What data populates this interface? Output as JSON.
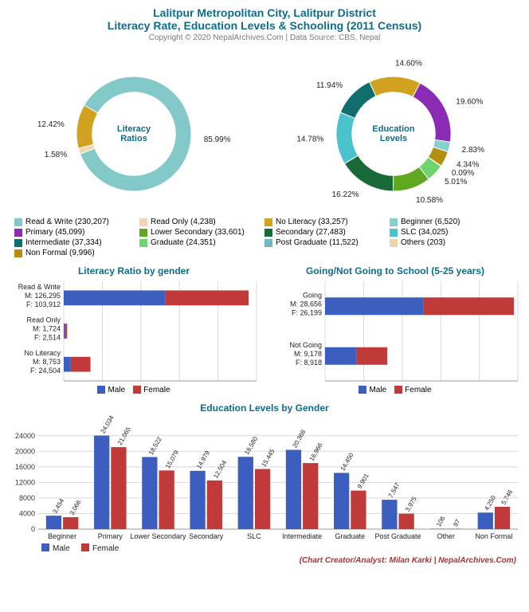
{
  "title": {
    "line1": "Lalitpur Metropolitan City, Lalitpur District",
    "line2": "Literacy Rate, Education Levels & Schooling (2011 Census)",
    "color": "#0f6b8a",
    "fontsize": 14
  },
  "copyright": "Copyright © 2020 NepalArchives.Com | Data Source: CBS, Nepal",
  "credit": "(Chart Creator/Analyst: Milan Karki | NepalArchives.Com)",
  "colors": {
    "male": "#3c5fbf",
    "female": "#c13a3a",
    "grid": "#d8d8d8",
    "axis": "#9a9a9a",
    "text": "#333333",
    "section_title": "#0f6b8a"
  },
  "donut1": {
    "title": "Literacy\nRatios",
    "title_color": "#0f6b8a",
    "title_fontsize": 11,
    "center_hole": 0.5,
    "slices": [
      {
        "label": "85.99%",
        "value": 85.99,
        "color": "#84c9c9"
      },
      {
        "label": "1.58%",
        "value": 1.58,
        "color": "#f1d4b1"
      },
      {
        "label": "12.42%",
        "value": 12.42,
        "color": "#d1a21f"
      }
    ],
    "label_fontsize": 10
  },
  "donut2": {
    "title": "Education\nLevels",
    "title_color": "#0f6b8a",
    "title_fontsize": 11,
    "center_hole": 0.5,
    "slices": [
      {
        "label": "14.60%",
        "value": 14.6,
        "color": "#d1a21f"
      },
      {
        "label": "19.60%",
        "value": 19.6,
        "color": "#8b2ab3"
      },
      {
        "label": "2.83%",
        "value": 2.83,
        "color": "#86d0ce"
      },
      {
        "label": "4.34%",
        "value": 4.34,
        "color": "#b38e0f"
      },
      {
        "label": "0.09%",
        "value": 0.09,
        "color": "#e8d5a8"
      },
      {
        "label": "5.01%",
        "value": 5.01,
        "color": "#6fd36f"
      },
      {
        "label": "10.58%",
        "value": 10.58,
        "color": "#5fa81f"
      },
      {
        "label": "16.22%",
        "value": 16.22,
        "color": "#186b37"
      },
      {
        "label": "14.78%",
        "value": 14.78,
        "color": "#4bc3cc"
      },
      {
        "label": "11.94%",
        "value": 11.94,
        "color": "#106e6e"
      }
    ],
    "label_fontsize": 10
  },
  "combined_legend": [
    {
      "label": "Read & Write (230,207)",
      "color": "#84c9c9"
    },
    {
      "label": "Read Only (4,238)",
      "color": "#f1d4b1"
    },
    {
      "label": "No Literacy (33,257)",
      "color": "#d1a21f"
    },
    {
      "label": "Beginner (6,520)",
      "color": "#86d0ce"
    },
    {
      "label": "Primary (45,099)",
      "color": "#8b2ab3"
    },
    {
      "label": "Lower Secondary (33,601)",
      "color": "#5fa81f"
    },
    {
      "label": "Secondary (27,483)",
      "color": "#186b37"
    },
    {
      "label": "SLC (34,025)",
      "color": "#4bc3cc"
    },
    {
      "label": "Intermediate (37,334)",
      "color": "#106e6e"
    },
    {
      "label": "Graduate (24,351)",
      "color": "#6fd36f"
    },
    {
      "label": "Post Graduate (11,522)",
      "color": "#6fb9c4"
    },
    {
      "label": "Others (203)",
      "color": "#e8d5a8"
    },
    {
      "label": "Non Formal (9,996)",
      "color": "#b38e0f"
    }
  ],
  "literacy_by_gender": {
    "title": "Literacy Ratio by gender",
    "categories": [
      {
        "name": "Read & Write",
        "m_label": "M: 126,295",
        "f_label": "F: 103,912",
        "m": 126295,
        "f": 103912
      },
      {
        "name": "Read Only",
        "m_label": "M: 1,724",
        "f_label": "F: 2,514",
        "m": 1724,
        "f": 2514
      },
      {
        "name": "No Literacy",
        "m_label": "M: 8,753",
        "f_label": "F: 24,504",
        "m": 8753,
        "f": 24504
      }
    ],
    "xmax": 240000,
    "label_fontsize": 9
  },
  "schooling": {
    "title": "Going/Not Going to School (5-25 years)",
    "categories": [
      {
        "name": "Going",
        "m_label": "M: 28,656",
        "f_label": "F: 26,199",
        "m": 28656,
        "f": 26199
      },
      {
        "name": "Not Going",
        "m_label": "M: 9,178",
        "f_label": "F: 8,918",
        "m": 9178,
        "f": 8918
      }
    ],
    "xmax": 56000,
    "label_fontsize": 9
  },
  "gender_legend": {
    "male": "Male",
    "female": "Female"
  },
  "edu_by_gender": {
    "title": "Education Levels by Gender",
    "categories": [
      "Beginner",
      "Primary",
      "Lower Secondary",
      "Secondary",
      "SLC",
      "Intermediate",
      "Graduate",
      "Post Graduate",
      "Other",
      "Non Formal"
    ],
    "male": [
      3454,
      24034,
      18522,
      14979,
      18580,
      20368,
      14450,
      7547,
      106,
      4250
    ],
    "female": [
      3066,
      21065,
      15079,
      12504,
      15445,
      16966,
      9901,
      3975,
      97,
      5746
    ],
    "male_labels": [
      "3,454",
      "24,034",
      "18,522",
      "14,979",
      "18,580",
      "20,368",
      "14,450",
      "7,547",
      "106",
      "4,250"
    ],
    "female_labels": [
      "3,066",
      "21,065",
      "15,079",
      "12,504",
      "15,445",
      "16,966",
      "9,901",
      "3,975",
      "97",
      "5,746"
    ],
    "ymax": 26000,
    "yticks": [
      0,
      4000,
      8000,
      12000,
      16000,
      20000,
      24000
    ],
    "label_fontsize": 8,
    "axis_fontsize": 9
  }
}
